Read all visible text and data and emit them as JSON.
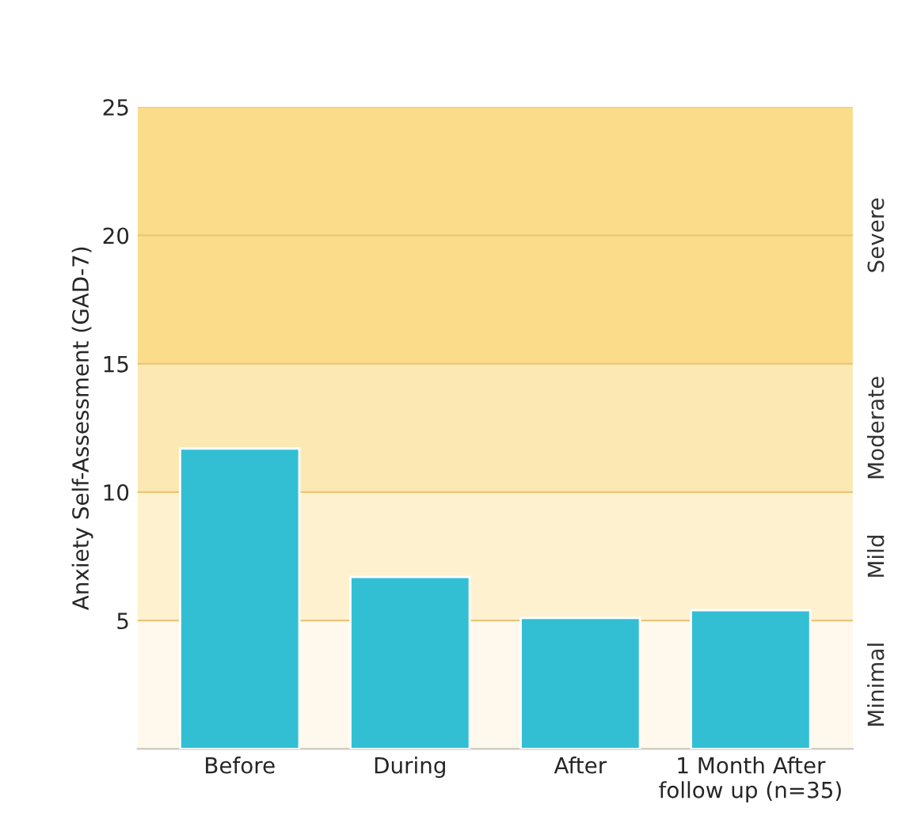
{
  "chart_data": {
    "type": "bar",
    "ylabel": "Anxiety Self-Assessment (GAD-7)",
    "categories": [
      "Before",
      "During",
      "After",
      "1 Month After\nfollow up (n=35)"
    ],
    "values": [
      11.7,
      6.7,
      5.1,
      5.4
    ],
    "color": "#33bfd3",
    "ylim": [
      0,
      25
    ],
    "yticks": [
      {
        "value": 0,
        "label": null
      },
      5,
      10,
      15,
      20,
      25
    ],
    "grid": "y",
    "bands": [
      {
        "axis": "y",
        "from": 0,
        "to": 5,
        "label": "Minimal",
        "color": "#fef9ec"
      },
      {
        "axis": "y",
        "from": 5,
        "to": 10,
        "label": "Mild",
        "color": "#fdf1d0"
      },
      {
        "axis": "y",
        "from": 10,
        "to": 15,
        "label": "Moderate",
        "color": "#fce8b2"
      },
      {
        "axis": "y",
        "from": 15,
        "to": 25,
        "label": "Severe",
        "color": "#fbdc8a"
      }
    ]
  }
}
